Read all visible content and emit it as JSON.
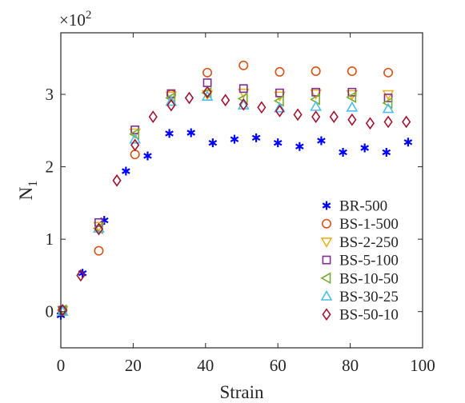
{
  "chart_data": {
    "type": "scatter",
    "xlabel": "Strain",
    "ylabel": "N",
    "ylabel_subscript": "1",
    "y_multiplier": "×10",
    "y_multiplier_exp": "2",
    "xlim": [
      0,
      100
    ],
    "ylim": [
      -0.5,
      3.85
    ],
    "x_ticks": [
      0,
      20,
      40,
      60,
      80,
      100
    ],
    "x_tick_labels": [
      "0",
      "20",
      "40",
      "60",
      "80",
      "100"
    ],
    "y_ticks": [
      0,
      1,
      2,
      3
    ],
    "y_tick_labels": [
      "0",
      "1",
      "2",
      "3"
    ],
    "grid": false,
    "legend_position": "bottom-right",
    "series": [
      {
        "name": "BR-500",
        "marker": "asterisk",
        "color": "#0000ff",
        "x": [
          0,
          6,
          12,
          18,
          24,
          30,
          36,
          42,
          48,
          54,
          60,
          66,
          72,
          78,
          84,
          90,
          96
        ],
        "y": [
          -0.05,
          0.53,
          1.26,
          1.94,
          2.15,
          2.46,
          2.47,
          2.33,
          2.38,
          2.4,
          2.33,
          2.28,
          2.36,
          2.2,
          2.26,
          2.2,
          2.34
        ]
      },
      {
        "name": "BS-1-500",
        "marker": "circle",
        "color": "#d95319",
        "x": [
          0.5,
          10.5,
          20.5,
          30.5,
          40.5,
          50.5,
          60.5,
          70.5,
          80.5,
          90.5
        ],
        "y": [
          0.02,
          0.84,
          2.17,
          3.0,
          3.3,
          3.4,
          3.31,
          3.32,
          3.32,
          3.3
        ]
      },
      {
        "name": "BS-2-250",
        "marker": "triangle-down",
        "color": "#edb120",
        "x": [
          0.5,
          10.5,
          20.5,
          30.5,
          40.5,
          50.5,
          60.5,
          70.5,
          80.5,
          90.5
        ],
        "y": [
          0.02,
          1.18,
          2.47,
          2.98,
          3.0,
          3.02,
          2.98,
          3.01,
          3.0,
          3.0
        ]
      },
      {
        "name": "BS-5-100",
        "marker": "square",
        "color": "#7e2f8e",
        "x": [
          0.5,
          10.5,
          20.5,
          30.5,
          40.5,
          50.5,
          60.5,
          70.5,
          80.5,
          90.5
        ],
        "y": [
          0.02,
          1.23,
          2.51,
          3.01,
          3.16,
          3.08,
          3.02,
          3.03,
          3.03,
          2.95
        ]
      },
      {
        "name": "BS-10-50",
        "marker": "triangle-left",
        "color": "#77ac30",
        "x": [
          0.5,
          10.5,
          20.5,
          30.5,
          40.5,
          50.5,
          60.5,
          70.5,
          80.5,
          90.5
        ],
        "y": [
          0.02,
          1.15,
          2.45,
          2.95,
          3.02,
          2.94,
          2.91,
          2.93,
          2.96,
          2.88
        ]
      },
      {
        "name": "BS-30-25",
        "marker": "triangle-up",
        "color": "#4dbeee",
        "x": [
          0.5,
          10.5,
          20.5,
          30.5,
          40.5,
          50.5,
          60.5,
          70.5,
          80.5,
          90.5
        ],
        "y": [
          0.0,
          1.15,
          2.38,
          2.9,
          2.97,
          2.85,
          2.81,
          2.83,
          2.82,
          2.8
        ]
      },
      {
        "name": "BS-50-10",
        "marker": "diamond",
        "color": "#a2142f",
        "x": [
          0.5,
          5.5,
          10.5,
          15.5,
          20.5,
          25.5,
          30.5,
          35.5,
          40.5,
          45.5,
          50.5,
          55.5,
          60.5,
          65.5,
          70.5,
          75.5,
          80.5,
          85.5,
          90.5,
          95.5
        ],
        "y": [
          0.02,
          0.5,
          1.14,
          1.81,
          2.3,
          2.69,
          2.85,
          2.95,
          3.03,
          2.92,
          2.86,
          2.82,
          2.77,
          2.72,
          2.69,
          2.69,
          2.65,
          2.6,
          2.62,
          2.62
        ]
      }
    ]
  }
}
